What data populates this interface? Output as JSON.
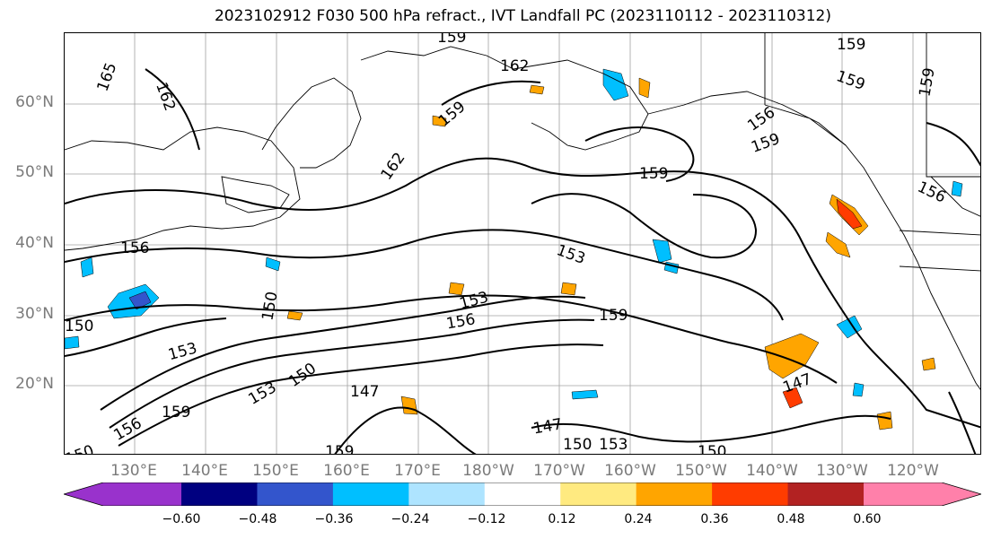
{
  "title": "2023102912 F030 500 hPa refract., IVT Landfall PC (2023110112 - 2023110312)",
  "lat_labels": [
    "60°N",
    "50°N",
    "40°N",
    "30°N",
    "20°N"
  ],
  "lon_labels": [
    "130°E",
    "140°E",
    "150°E",
    "160°E",
    "170°E",
    "180°W",
    "170°W",
    "160°W",
    "150°W",
    "140°W",
    "130°W",
    "120°W"
  ],
  "contour_labels": [
    "159",
    "165",
    "162",
    "162",
    "159",
    "159",
    "159",
    "159",
    "162",
    "156",
    "159",
    "156",
    "156",
    "159",
    "153",
    "150",
    "153",
    "156",
    "159",
    "153",
    "150",
    "150",
    "153",
    "159",
    "147",
    "147",
    "150",
    "153",
    "150",
    "147",
    "150",
    "159",
    "156"
  ],
  "colorbar": {
    "colors": [
      "#9932cc",
      "#000080",
      "#3355cc",
      "#00bfff",
      "#aee4ff",
      "#ffffff",
      "#ffea80",
      "#ffa500",
      "#ff3c00",
      "#b22222",
      "#ff80aa"
    ],
    "ticks": [
      "−0.60",
      "−0.48",
      "−0.36",
      "−0.24",
      "−0.12",
      "0.12",
      "0.24",
      "0.36",
      "0.48",
      "0.60"
    ]
  }
}
